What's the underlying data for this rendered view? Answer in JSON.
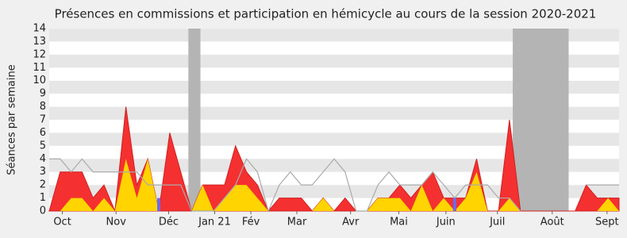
{
  "chart_data": {
    "type": "area",
    "title": "Présences en commissions et participation en hémicycle au cours de la session 2020-2021",
    "y_label": "Séances par semaine",
    "x": [
      0,
      1,
      2,
      3,
      4,
      5,
      6,
      7,
      8,
      9,
      10,
      11,
      12,
      13,
      14,
      15,
      16,
      17,
      18,
      19,
      20,
      21,
      22,
      23,
      24,
      25,
      26,
      27,
      28,
      29,
      30,
      31,
      32,
      33,
      34,
      35,
      36,
      37,
      38,
      39,
      40,
      41,
      42,
      43,
      44,
      45,
      46,
      47,
      48,
      49,
      50,
      51,
      52
    ],
    "xlim": [
      0,
      52
    ],
    "xticks": [
      {
        "value": 1.2,
        "label": "Oct"
      },
      {
        "value": 6.1,
        "label": "Nov"
      },
      {
        "value": 10.9,
        "label": "Déc"
      },
      {
        "value": 15.1,
        "label": "Jan 21"
      },
      {
        "value": 18.4,
        "label": "Fév"
      },
      {
        "value": 22.6,
        "label": "Mar"
      },
      {
        "value": 27.5,
        "label": "Avr"
      },
      {
        "value": 31.9,
        "label": "Mai"
      },
      {
        "value": 36.2,
        "label": "Juin"
      },
      {
        "value": 40.9,
        "label": "Juil"
      },
      {
        "value": 45.9,
        "label": "Août"
      },
      {
        "value": 50.9,
        "label": "Sept"
      }
    ],
    "ylim": [
      0,
      14
    ],
    "yticks": [
      0,
      1,
      2,
      3,
      4,
      5,
      6,
      7,
      8,
      9,
      10,
      11,
      12,
      13,
      14
    ],
    "vacations": [
      [
        12.7,
        13.8
      ],
      [
        42.3,
        47.4
      ]
    ],
    "vacation_color": "#b4b4b4",
    "series": [
      {
        "kind": "area",
        "color": "#f53030",
        "values": [
          0,
          3,
          3,
          3,
          1,
          2,
          0,
          8,
          2,
          4,
          0,
          6,
          3,
          0,
          2,
          2,
          2,
          5,
          3,
          2,
          0,
          1,
          1,
          1,
          0,
          1,
          0,
          1,
          0,
          0,
          1,
          1,
          2,
          1,
          2,
          3,
          1,
          1,
          1,
          4,
          0,
          0,
          7,
          0,
          0,
          0,
          0,
          0,
          0,
          2,
          1,
          1,
          1
        ]
      },
      {
        "kind": "area",
        "color": "#ffd400",
        "values": [
          0,
          0,
          1,
          1,
          0,
          1,
          0,
          4,
          1,
          4,
          0,
          0,
          0,
          0,
          2,
          0,
          1,
          2,
          2,
          1,
          0,
          0,
          0,
          0,
          0,
          1,
          0,
          0,
          0,
          0,
          1,
          1,
          1,
          0,
          2,
          0,
          1,
          0,
          1,
          3,
          0,
          0,
          1,
          0,
          0,
          0,
          0,
          0,
          0,
          0,
          0,
          1,
          0
        ]
      },
      {
        "kind": "line",
        "color": "#aaaaaa",
        "values": [
          4,
          4,
          3,
          4,
          3,
          3,
          3,
          3,
          3,
          2,
          2,
          2,
          2,
          0,
          0,
          0,
          1,
          2,
          4,
          3,
          0,
          2,
          3,
          2,
          2,
          3,
          4,
          3,
          0,
          0,
          2,
          3,
          2,
          2,
          2,
          3,
          2,
          1,
          2,
          2,
          2,
          1,
          1,
          0,
          null,
          null,
          null,
          null,
          null,
          2,
          2,
          2,
          2
        ]
      },
      {
        "kind": "bar",
        "color": "#6a6af0",
        "values": [
          null,
          null,
          null,
          null,
          null,
          null,
          null,
          null,
          null,
          null,
          1,
          null,
          null,
          null,
          null,
          null,
          null,
          null,
          null,
          null,
          null,
          null,
          null,
          null,
          null,
          null,
          null,
          null,
          null,
          null,
          null,
          null,
          null,
          null,
          null,
          null,
          null,
          1,
          null,
          null,
          null,
          null,
          null,
          null,
          null,
          null,
          null,
          null,
          null,
          null,
          null,
          null,
          null
        ]
      }
    ]
  }
}
